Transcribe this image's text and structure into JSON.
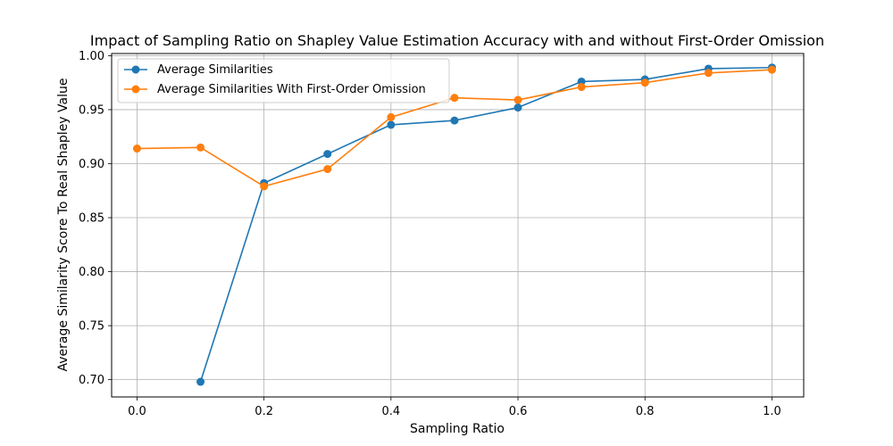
{
  "chart_data": {
    "type": "line",
    "title": "Impact of Sampling Ratio on Shapley Value Estimation Accuracy with and without First-Order Omission",
    "xlabel": "Sampling Ratio",
    "ylabel": "Average Similarity Score To Real Shapley Value",
    "xlim": [
      -0.04,
      1.05
    ],
    "ylim": [
      0.684,
      1.002
    ],
    "xticks": [
      0.0,
      0.2,
      0.4,
      0.6,
      0.8,
      1.0
    ],
    "xtick_labels": [
      "0.0",
      "0.2",
      "0.4",
      "0.6",
      "0.8",
      "1.0"
    ],
    "yticks": [
      0.7,
      0.75,
      0.8,
      0.85,
      0.9,
      0.95,
      1.0
    ],
    "ytick_labels": [
      "0.70",
      "0.75",
      "0.80",
      "0.85",
      "0.90",
      "0.95",
      "1.00"
    ],
    "grid": true,
    "legend_position": "top-left",
    "series": [
      {
        "name": "Average Similarities",
        "color": "#1f77b4",
        "x": [
          0.1,
          0.2,
          0.3,
          0.4,
          0.5,
          0.6,
          0.7,
          0.8,
          0.9,
          1.0
        ],
        "y": [
          0.698,
          0.882,
          0.909,
          0.936,
          0.94,
          0.952,
          0.976,
          0.978,
          0.988,
          0.989
        ]
      },
      {
        "name": "Average Similarities With First-Order Omission",
        "color": "#ff7f0e",
        "x": [
          0.0,
          0.1,
          0.2,
          0.3,
          0.4,
          0.5,
          0.6,
          0.7,
          0.8,
          0.9,
          1.0
        ],
        "y": [
          0.914,
          0.915,
          0.879,
          0.895,
          0.943,
          0.961,
          0.959,
          0.971,
          0.975,
          0.984,
          0.987
        ]
      }
    ]
  }
}
